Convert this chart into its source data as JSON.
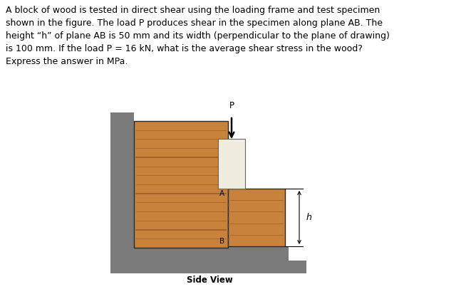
{
  "text_block": "A block of wood is tested in direct shear using the loading frame and test specimen\nshown in the figure. The load P produces shear in the specimen along plane AB. The\nheight “h” of plane AB is 50 mm and its width (perpendicular to the plane of drawing)\nis 100 mm. If the load P = 16 kN, what is the average shear stress in the wood?\nExpress the answer in MPa.",
  "caption": "Side View",
  "label_P": "P",
  "label_A": "A",
  "label_B": "B",
  "label_h": "h",
  "bg_color": "#ffffff",
  "frame_color": "#7a7a7a",
  "wood_color": "#c8823c",
  "wood_grain_color": "#9e5e22",
  "punch_color": "#f0ede0",
  "punch_border": "#666666",
  "text_color": "#000000",
  "arrow_color": "#000000",
  "dashed_line_color": "#444444"
}
